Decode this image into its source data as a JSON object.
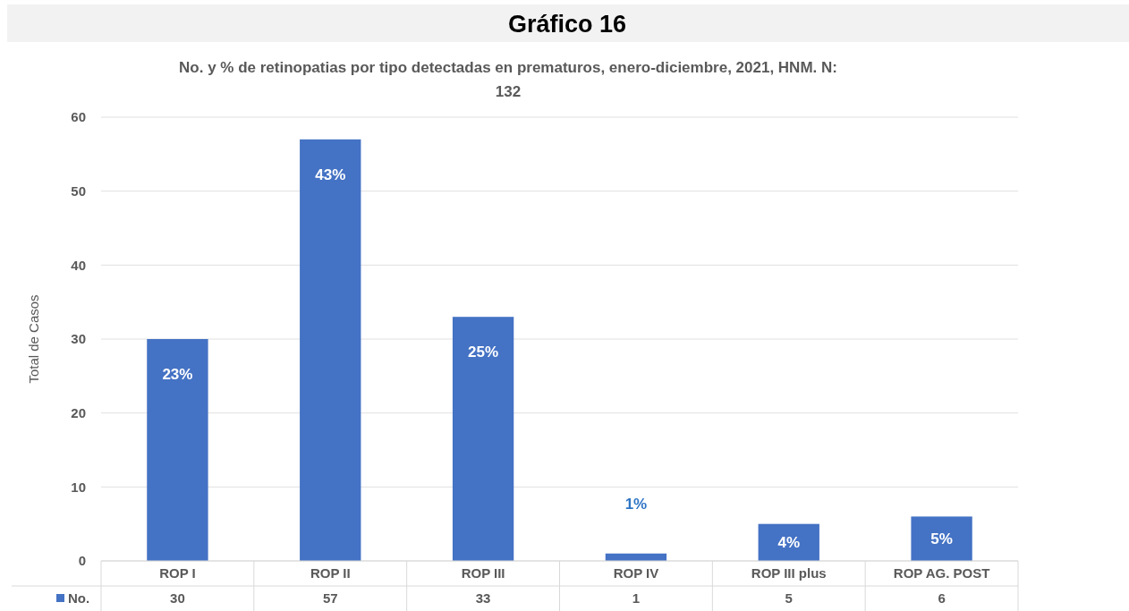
{
  "chart_data": {
    "type": "bar",
    "title": "Gráfico 16",
    "subtitle": "No. y % de retinopatias por tipo detectadas en prematuros, enero-diciembre, 2021, HNM. N: 132",
    "ylabel": "Total de Casos",
    "categories": [
      "ROP I",
      "ROP II",
      "ROP III",
      "ROP IV",
      "ROP III plus",
      "ROP AG. POST"
    ],
    "series": [
      {
        "name": "No.",
        "color": "#4472c4",
        "values": [
          30,
          57,
          33,
          1,
          5,
          6
        ]
      }
    ],
    "annotations": [
      {
        "text": "23%",
        "x": "ROP I",
        "y": 30
      },
      {
        "text": "43%",
        "x": "ROP II",
        "y": 57
      },
      {
        "text": "25%",
        "x": "ROP III",
        "y": 33
      },
      {
        "text": "1%",
        "x": "ROP IV",
        "y": 1
      },
      {
        "text": "4%",
        "x": "ROP III plus",
        "y": 5
      },
      {
        "text": "5%",
        "x": "ROP AG. POST",
        "y": 6
      }
    ],
    "ylim": [
      0,
      60
    ],
    "yticks": [
      0,
      10,
      20,
      30,
      40,
      50,
      60
    ],
    "grid": "y",
    "legend": "bottom",
    "data_labels": true
  }
}
